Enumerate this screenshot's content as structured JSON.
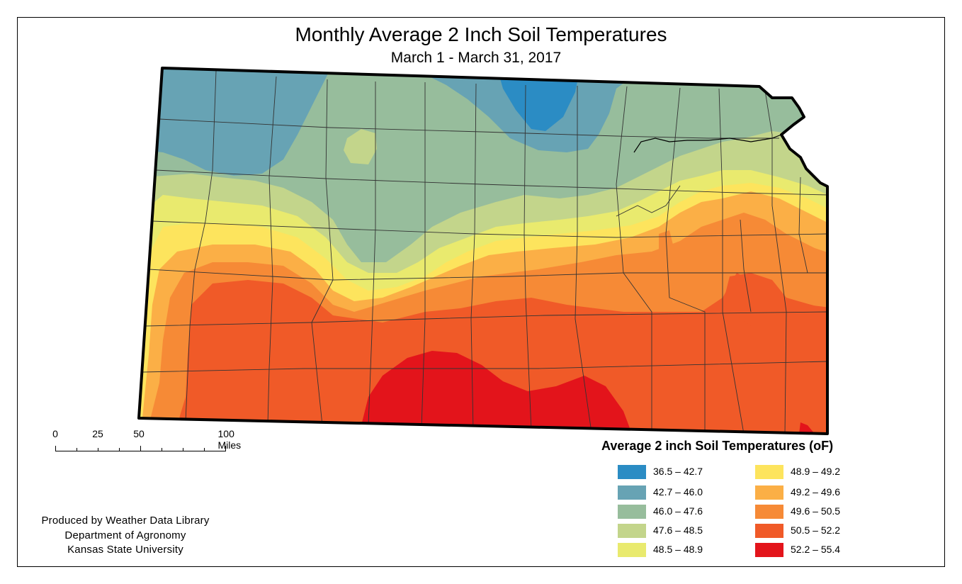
{
  "title": "Monthly Average 2 Inch Soil Temperatures",
  "subtitle": "March 1 - March 31, 2017",
  "scale": {
    "labels": [
      "0",
      "25",
      "50",
      "100 Miles"
    ]
  },
  "credits": {
    "line1": "Produced by Weather Data Library",
    "line2": "Department of Agronomy",
    "line3": "Kansas State University"
  },
  "legend": {
    "title": "Average 2 inch Soil Temperatures (oF)",
    "items": [
      {
        "label": "36.5 – 42.7",
        "color": "#2b8cc4"
      },
      {
        "label": "42.7 – 46.0",
        "color": "#67a3b4"
      },
      {
        "label": "46.0 – 47.6",
        "color": "#97bd9c"
      },
      {
        "label": "47.6 – 48.5",
        "color": "#c3d58b"
      },
      {
        "label": "48.5 – 48.9",
        "color": "#e9ea6e"
      },
      {
        "label": "48.9 – 49.2",
        "color": "#fde45d"
      },
      {
        "label": "49.2 – 49.6",
        "color": "#fbaf46"
      },
      {
        "label": "49.6 – 50.5",
        "color": "#f68a36"
      },
      {
        "label": "50.5 – 52.2",
        "color": "#f05a28"
      },
      {
        "label": "52.2 – 55.4",
        "color": "#e3141b"
      }
    ]
  }
}
